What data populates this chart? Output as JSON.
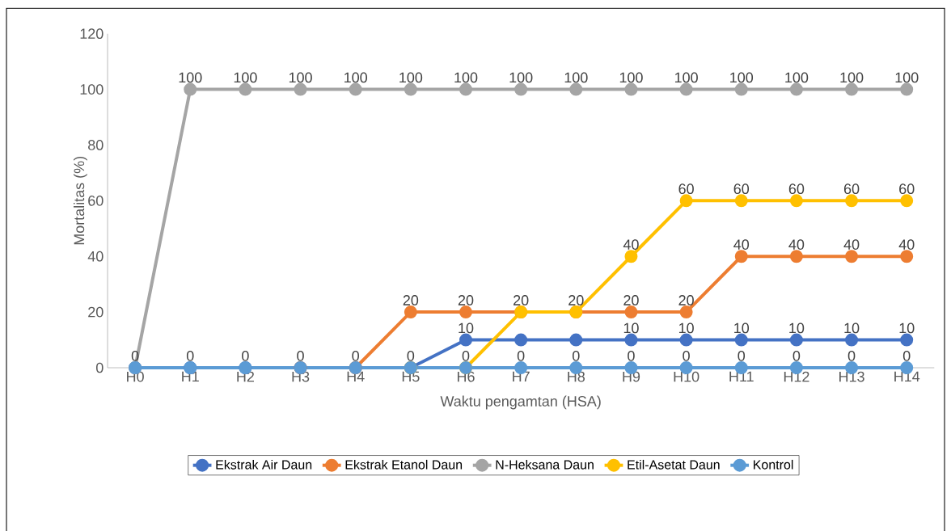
{
  "chart_data": {
    "type": "line",
    "xlabel": "Waktu pengamtan (HSA)",
    "ylabel": "Mortalitas (%)",
    "categories": [
      "H0",
      "H1",
      "H2",
      "H3",
      "H4",
      "H5",
      "H6",
      "H7",
      "H8",
      "H9",
      "H10",
      "H11",
      "H12",
      "H13",
      "H14"
    ],
    "series": [
      {
        "name": "Ekstrak Air Daun",
        "color": "#4472c4",
        "values": [
          0,
          0,
          0,
          0,
          0,
          0,
          10,
          10,
          10,
          10,
          10,
          10,
          10,
          10,
          10
        ],
        "value_labels": [
          null,
          null,
          null,
          null,
          null,
          null,
          "10",
          null,
          null,
          "10",
          "10",
          "10",
          "10",
          "10",
          "10"
        ]
      },
      {
        "name": "Ekstrak Etanol Daun",
        "color": "#ed7d31",
        "values": [
          null,
          null,
          null,
          0,
          0,
          20,
          20,
          20,
          20,
          20,
          20,
          40,
          40,
          40,
          40
        ],
        "value_labels": [
          null,
          null,
          null,
          null,
          null,
          "20",
          "20",
          "20",
          "20",
          "20",
          "20",
          "40",
          "40",
          "40",
          "40"
        ]
      },
      {
        "name": "N-Heksana Daun",
        "color": "#a5a5a5",
        "values": [
          0,
          100,
          100,
          100,
          100,
          100,
          100,
          100,
          100,
          100,
          100,
          100,
          100,
          100,
          100
        ],
        "value_labels": [
          null,
          "100",
          "100",
          "100",
          "100",
          "100",
          "100",
          "100",
          "100",
          "100",
          "100",
          "100",
          "100",
          "100",
          "100"
        ]
      },
      {
        "name": "Etil-Asetat Daun",
        "color": "#ffc000",
        "values": [
          null,
          null,
          null,
          null,
          null,
          0,
          0,
          20,
          20,
          40,
          60,
          60,
          60,
          60,
          60
        ],
        "value_labels": [
          null,
          null,
          null,
          null,
          null,
          null,
          null,
          null,
          null,
          "40",
          "60",
          "60",
          "60",
          "60",
          "60"
        ]
      },
      {
        "name": "Kontrol",
        "color": "#5b9bd5",
        "values": [
          0,
          0,
          0,
          0,
          0,
          0,
          0,
          0,
          0,
          0,
          0,
          0,
          0,
          0,
          0
        ],
        "value_labels": [
          "0",
          "0",
          "0",
          "0",
          "0",
          "0",
          "0",
          "0",
          "0",
          "0",
          "0",
          "0",
          "0",
          "0",
          "0"
        ]
      }
    ],
    "ylim": [
      0,
      120
    ],
    "yticks": [
      0,
      20,
      40,
      60,
      80,
      100,
      120
    ],
    "legend": "bottom",
    "marker": "circle",
    "line_style": "solid",
    "grid": false
  }
}
